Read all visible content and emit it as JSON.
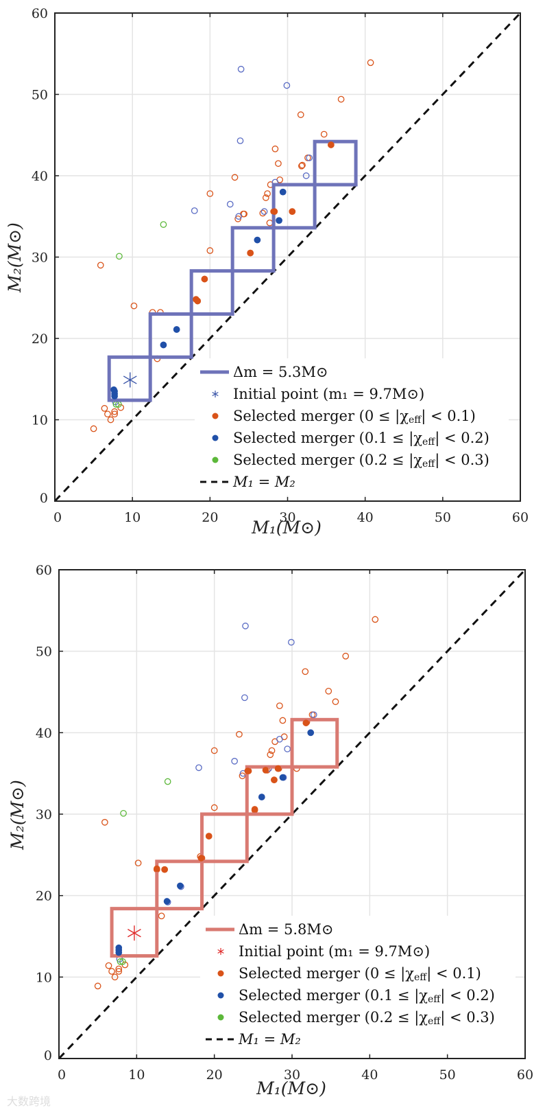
{
  "colors": {
    "orange": "#d95319",
    "blue": "#2050a8",
    "blue_open": "#5a6cc4",
    "green": "#5cb83a",
    "grid": "#e4e4e4",
    "axis": "#222222"
  },
  "watermark": "大数跨境",
  "chart_data": [
    {
      "type": "scatter",
      "xlabel": "M₁(M⊙)",
      "ylabel": "M₂(M⊙)",
      "xlim": [
        0,
        60
      ],
      "ylim": [
        0,
        60
      ],
      "xticks": [
        "0",
        "10",
        "20",
        "30",
        "40",
        "50",
        "60"
      ],
      "yticks": [
        "0",
        "10",
        "20",
        "30",
        "40",
        "50",
        "60"
      ],
      "grid": true,
      "box_color": "#6e73b9",
      "boxes": {
        "start": [
          7.0,
          12.4
        ],
        "dm": 5.3,
        "count": 6
      },
      "initial_point": {
        "x": 9.7,
        "y": 14.9,
        "color": "#3a55a8"
      },
      "legend": {
        "placement": "bottom-right",
        "box_label": "Δm = 5.3M⊙",
        "initial_label": "Initial point (m₁ = 9.7M⊙)",
        "merger_labels": [
          {
            "pre": "Selected merger (0 ≤ |χ",
            "sub": "eff",
            "post": "| < 0.1)"
          },
          {
            "pre": "Selected merger (0.1 ≤ |χ",
            "sub": "eff",
            "post": "| < 0.2)"
          },
          {
            "pre": "Selected merger (0.2 ≤ |χ",
            "sub": "eff",
            "post": "| < 0.3)"
          }
        ],
        "diag_label": "M₁ = M₂"
      },
      "selected": {
        "orange": [
          [
            35.6,
            43.8
          ],
          [
            28.3,
            35.6
          ],
          [
            30.6,
            35.6
          ],
          [
            25.2,
            30.5
          ],
          [
            19.3,
            27.3
          ],
          [
            18.2,
            24.8
          ],
          [
            18.4,
            24.6
          ]
        ],
        "blue": [
          [
            29.4,
            38.0
          ],
          [
            28.9,
            34.5
          ],
          [
            26.1,
            32.1
          ],
          [
            15.7,
            21.1
          ],
          [
            14.0,
            19.2
          ],
          [
            7.7,
            12.9
          ],
          [
            7.7,
            13.2
          ],
          [
            7.7,
            13.5
          ],
          [
            7.6,
            13.7
          ]
        ],
        "green": []
      }
    },
    {
      "type": "scatter",
      "xlabel": "M₁(M⊙)",
      "ylabel": "M₂(M⊙)",
      "xlim": [
        0,
        60
      ],
      "ylim": [
        0,
        60
      ],
      "xticks": [
        "0",
        "10",
        "20",
        "30",
        "40",
        "50",
        "60"
      ],
      "yticks": [
        "0",
        "10",
        "20",
        "30",
        "40",
        "50",
        "60"
      ],
      "grid": true,
      "box_color": "#d97a72",
      "boxes": {
        "start": [
          6.8,
          12.6
        ],
        "dm": 5.8,
        "count": 5
      },
      "initial_point": {
        "x": 9.7,
        "y": 15.4,
        "color": "#e02a2a"
      },
      "legend": {
        "placement": "bottom-right",
        "box_label": "Δm = 5.8M⊙",
        "initial_label": "Initial point (m₁ = 9.7M⊙)",
        "merger_labels": [
          {
            "pre": "Selected merger (0 ≤ |χ",
            "sub": "eff",
            "post": "| < 0.1)"
          },
          {
            "pre": "Selected merger (0.1 ≤ |χ",
            "sub": "eff",
            "post": "| < 0.2)"
          },
          {
            "pre": "Selected merger (0.2 ≤ |χ",
            "sub": "eff",
            "post": "| < 0.3)"
          }
        ],
        "diag_label": "M₁ = M₂"
      },
      "selected": {
        "orange": [
          [
            31.8,
            41.2
          ],
          [
            24.3,
            35.3
          ],
          [
            26.6,
            35.4
          ],
          [
            28.2,
            35.6
          ],
          [
            27.7,
            34.2
          ],
          [
            25.2,
            30.6
          ],
          [
            19.3,
            27.3
          ],
          [
            18.3,
            24.6
          ],
          [
            12.6,
            23.3
          ],
          [
            13.6,
            23.2
          ]
        ],
        "blue": [
          [
            32.4,
            40.0
          ],
          [
            28.8,
            34.5
          ],
          [
            26.1,
            32.1
          ],
          [
            15.6,
            21.2
          ],
          [
            13.9,
            19.3
          ],
          [
            7.7,
            13.0
          ],
          [
            7.7,
            13.3
          ],
          [
            7.7,
            13.6
          ]
        ],
        "green": []
      }
    }
  ],
  "all_mergers": {
    "orange": [
      [
        40.7,
        53.9
      ],
      [
        36.9,
        49.4
      ],
      [
        31.7,
        47.5
      ],
      [
        34.7,
        45.1
      ],
      [
        28.4,
        43.3
      ],
      [
        28.8,
        41.5
      ],
      [
        32.6,
        42.2
      ],
      [
        31.9,
        41.3
      ],
      [
        23.2,
        39.8
      ],
      [
        29.0,
        39.5
      ],
      [
        27.8,
        38.9
      ],
      [
        20.0,
        37.8
      ],
      [
        27.4,
        37.8
      ],
      [
        27.2,
        37.3
      ],
      [
        26.8,
        35.4
      ],
      [
        24.4,
        35.3
      ],
      [
        23.6,
        34.7
      ],
      [
        27.7,
        34.2
      ],
      [
        20.0,
        30.8
      ],
      [
        5.9,
        29.0
      ],
      [
        10.2,
        24.0
      ],
      [
        12.6,
        23.2
      ],
      [
        13.6,
        23.2
      ],
      [
        13.2,
        17.5
      ],
      [
        6.4,
        11.4
      ],
      [
        6.8,
        10.7
      ],
      [
        7.2,
        10.0
      ],
      [
        7.7,
        10.7
      ],
      [
        7.7,
        11.0
      ],
      [
        8.5,
        11.5
      ],
      [
        5.0,
        8.9
      ],
      [
        35.6,
        43.8
      ],
      [
        28.3,
        35.6
      ],
      [
        30.6,
        35.6
      ],
      [
        25.2,
        30.5
      ],
      [
        19.3,
        27.3
      ],
      [
        18.2,
        24.8
      ],
      [
        18.4,
        24.6
      ],
      [
        31.8,
        41.2
      ],
      [
        24.3,
        35.3
      ],
      [
        28.2,
        35.6
      ]
    ],
    "blue": [
      [
        24.0,
        53.1
      ],
      [
        29.9,
        51.1
      ],
      [
        23.9,
        44.3
      ],
      [
        32.8,
        42.2
      ],
      [
        32.4,
        40.0
      ],
      [
        28.4,
        39.2
      ],
      [
        22.6,
        36.5
      ],
      [
        18.0,
        35.7
      ],
      [
        27.0,
        35.6
      ],
      [
        23.7,
        35.0
      ],
      [
        29.4,
        38.0
      ],
      [
        28.9,
        34.5
      ],
      [
        26.1,
        32.1
      ],
      [
        15.7,
        21.1
      ],
      [
        14.0,
        19.2
      ],
      [
        7.8,
        12.2
      ]
    ],
    "green": [
      [
        14.0,
        34.0
      ],
      [
        8.3,
        30.1
      ],
      [
        7.9,
        11.9
      ],
      [
        8.2,
        11.9
      ]
    ]
  }
}
